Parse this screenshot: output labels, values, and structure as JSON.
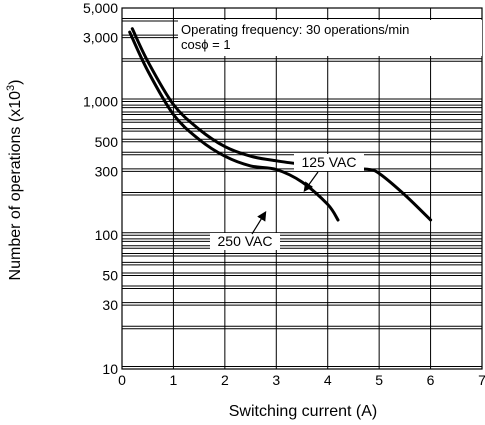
{
  "chart_data": {
    "type": "line",
    "xlabel": "Switching current (A)",
    "ylabel": "Number of operations  (x10",
    "ylabel_exponent": "3",
    "ylabel_close": ")",
    "xlim": [
      0,
      7
    ],
    "ylim": [
      10,
      5000
    ],
    "y_scale": "log",
    "x_ticks": [
      "0",
      "1",
      "2",
      "3",
      "4",
      "5",
      "6",
      "7"
    ],
    "y_ticks": [
      {
        "value": 10,
        "label": "10"
      },
      {
        "value": 30,
        "label": "30"
      },
      {
        "value": 50,
        "label": "50"
      },
      {
        "value": 100,
        "label": "100"
      },
      {
        "value": 300,
        "label": "300"
      },
      {
        "value": 500,
        "label": "500"
      },
      {
        "value": 1000,
        "label": "1,000"
      },
      {
        "value": 3000,
        "label": "3,000"
      },
      {
        "value": 5000,
        "label": "5,000"
      }
    ],
    "grid": true,
    "annotations": [
      "Operating frequency: 30 operations/min",
      "cosϕ = 1"
    ],
    "series": [
      {
        "name": "125 VAC",
        "x": [
          0.2,
          0.5,
          1.0,
          1.5,
          2.0,
          2.5,
          3.0,
          3.5,
          4.0,
          4.5,
          4.8,
          5.0,
          5.5,
          6.0
        ],
        "y": [
          3500,
          2000,
          950,
          620,
          460,
          390,
          360,
          340,
          325,
          315,
          310,
          290,
          200,
          130
        ]
      },
      {
        "name": "250 VAC",
        "x": [
          0.15,
          0.5,
          1.0,
          1.5,
          2.0,
          2.5,
          3.0,
          3.5,
          4.0,
          4.2
        ],
        "y": [
          3300,
          1700,
          800,
          520,
          390,
          330,
          310,
          250,
          170,
          130
        ]
      }
    ]
  }
}
